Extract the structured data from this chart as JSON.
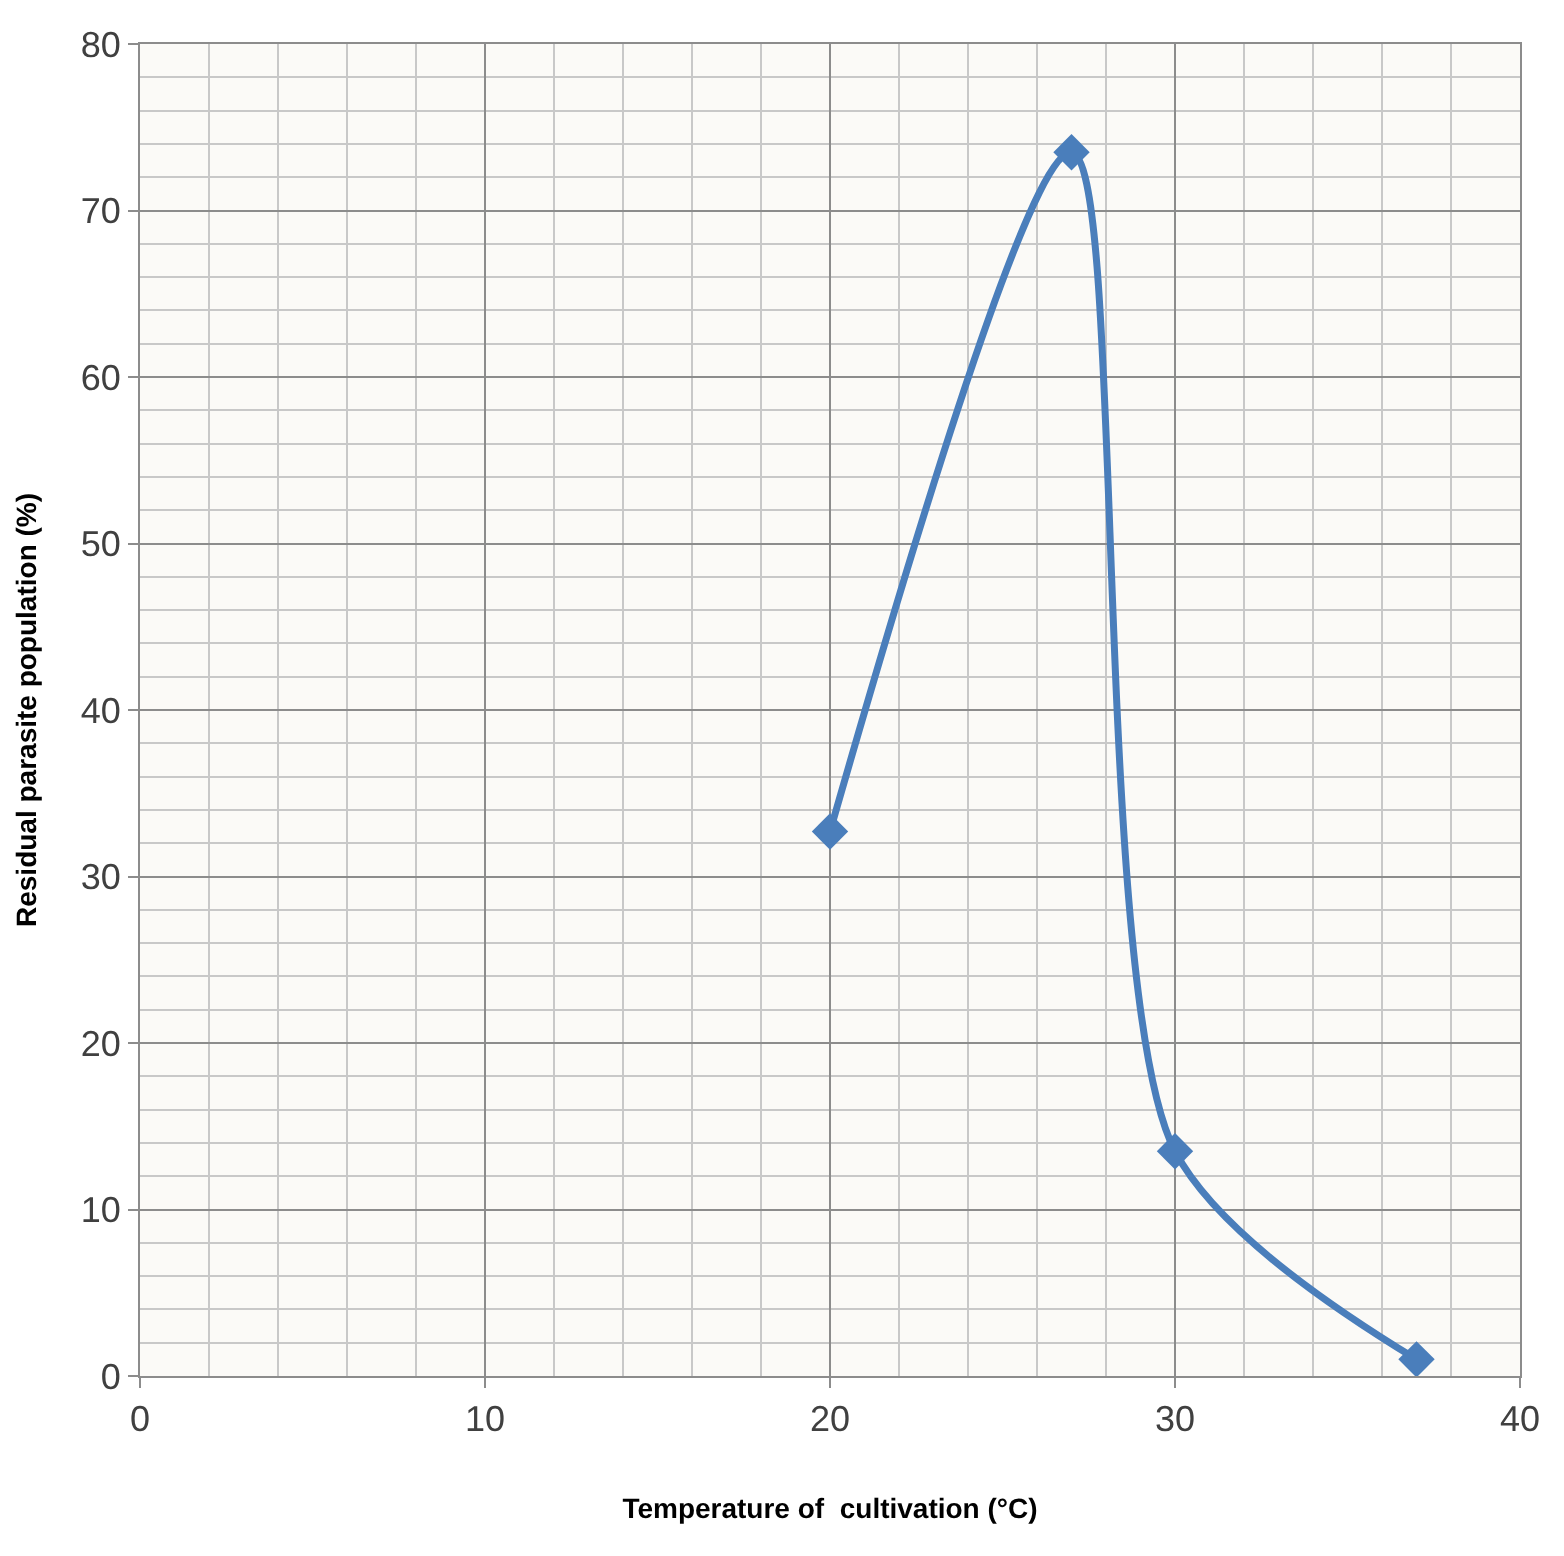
{
  "chart_data": {
    "type": "line",
    "xlabel": "Temperature of  cultivation (°C)",
    "ylabel": "Residual parasite population (%)",
    "x": [
      20,
      27,
      30,
      37
    ],
    "series": [
      {
        "color": "#4a7ebb",
        "values": [
          32.7,
          73.5,
          13.5,
          1
        ]
      }
    ],
    "xlim": [
      0,
      40
    ],
    "xticks": [
      0,
      10,
      20,
      30,
      40
    ],
    "ylim": [
      0,
      80
    ],
    "yticks": [
      0,
      10,
      20,
      30,
      40,
      50,
      60,
      70,
      80
    ],
    "grid": true,
    "marker": "diamond",
    "line_style": "solid",
    "legend": false
  }
}
